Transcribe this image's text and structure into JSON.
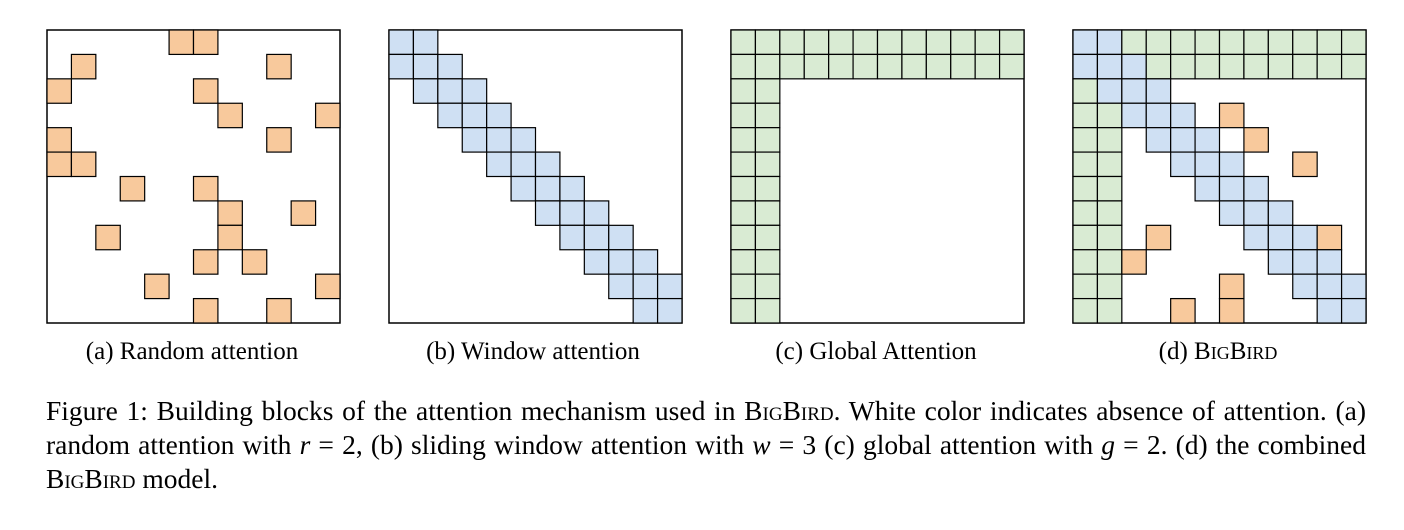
{
  "grid": {
    "size": 12,
    "colors": {
      "random": "#f8c99c",
      "window": "#cfe0f3",
      "global": "#d9ebd3",
      "empty": "#ffffff",
      "line": "#000000"
    },
    "random_cells": [
      [
        0,
        5
      ],
      [
        0,
        6
      ],
      [
        1,
        1
      ],
      [
        1,
        9
      ],
      [
        2,
        0
      ],
      [
        2,
        6
      ],
      [
        3,
        7
      ],
      [
        3,
        11
      ],
      [
        4,
        0
      ],
      [
        4,
        9
      ],
      [
        5,
        0
      ],
      [
        5,
        1
      ],
      [
        6,
        3
      ],
      [
        6,
        6
      ],
      [
        7,
        7
      ],
      [
        7,
        10
      ],
      [
        8,
        2
      ],
      [
        8,
        7
      ],
      [
        9,
        6
      ],
      [
        9,
        8
      ],
      [
        10,
        4
      ],
      [
        10,
        11
      ],
      [
        11,
        6
      ],
      [
        11,
        9
      ]
    ],
    "window_width": 3,
    "global_count": 2,
    "bigbird_random_cells": [
      [
        3,
        6
      ],
      [
        4,
        7
      ],
      [
        5,
        9
      ],
      [
        8,
        3
      ],
      [
        8,
        10
      ],
      [
        9,
        2
      ],
      [
        10,
        6
      ],
      [
        11,
        4
      ],
      [
        11,
        6
      ]
    ]
  },
  "panels": [
    {
      "id": "a",
      "label": "(a) Random attention",
      "mode": "random"
    },
    {
      "id": "b",
      "label": "(b) Window attention",
      "mode": "window"
    },
    {
      "id": "c",
      "label": "(c) Global Attention",
      "mode": "global"
    },
    {
      "id": "d",
      "label_prefix": "(d) ",
      "label_sc": "BigBird",
      "mode": "bigbird"
    }
  ],
  "caption": {
    "p1": "Figure 1: Building blocks of the attention mechanism used in ",
    "sc1": "BigBird",
    "p2": ". White color indicates absence of attention. (a) random attention with ",
    "r_var": "r",
    "p3": " = 2, (b) sliding window attention with ",
    "w_var": "w",
    "p4": " = 3 (c) global attention with ",
    "g_var": "g",
    "p5": " = 2. (d) the combined ",
    "sc2": "BigBird",
    "p6": " model."
  }
}
